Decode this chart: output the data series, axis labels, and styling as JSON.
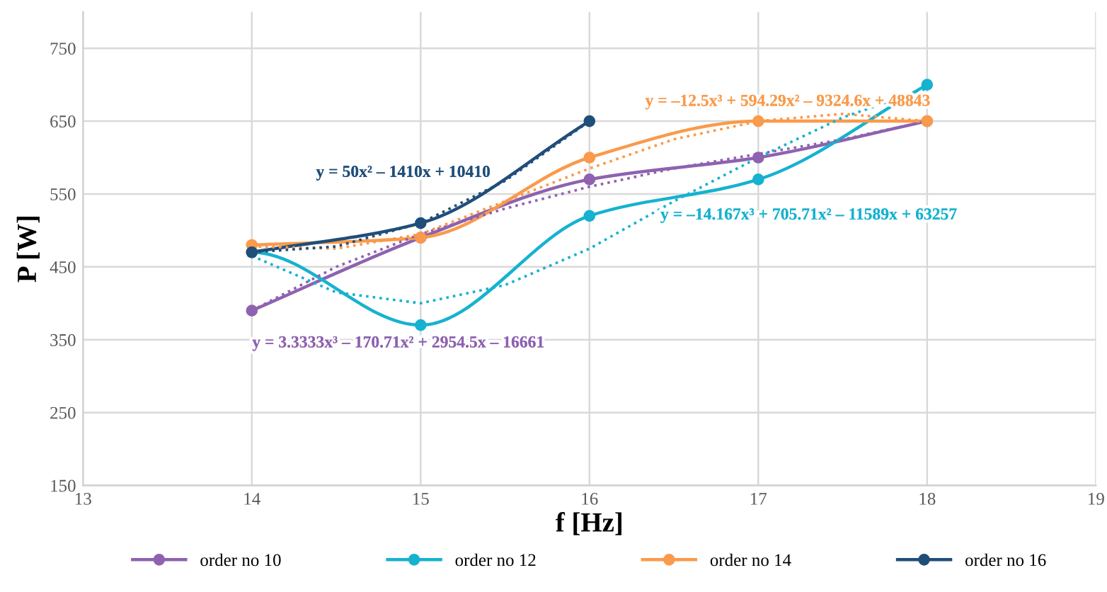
{
  "chart_data": {
    "type": "line",
    "xlabel": "f [Hz]",
    "ylabel": "P [W]",
    "xlim": [
      13,
      19
    ],
    "xticks": [
      13,
      14,
      15,
      16,
      17,
      18,
      19
    ],
    "ylim": [
      150,
      800
    ],
    "yticks": [
      150,
      250,
      350,
      450,
      550,
      650,
      750
    ],
    "grid": true,
    "legend": "bottom",
    "marker": "circle",
    "line_style": "solid",
    "series": [
      {
        "name": "order no 10",
        "color": "#8e62b0",
        "x": [
          14,
          15,
          16,
          17,
          18
        ],
        "values": [
          390,
          490,
          570,
          600,
          650
        ]
      },
      {
        "name": "order no 12",
        "color": "#16b2d0",
        "x": [
          14,
          15,
          16,
          17,
          18
        ],
        "values": [
          470,
          370,
          520,
          570,
          700
        ]
      },
      {
        "name": "order no 14",
        "color": "#fa9a4b",
        "x": [
          14,
          15,
          16,
          17,
          18
        ],
        "values": [
          480,
          490,
          600,
          650,
          650
        ]
      },
      {
        "name": "order no 16",
        "color": "#1f4e79",
        "x": [
          14,
          15,
          16
        ],
        "values": [
          470,
          510,
          650
        ]
      },
      {
        "color": "#8e62b0",
        "marker": "none",
        "line_style": "dotted",
        "x": [
          14,
          14.5,
          15,
          15.5,
          16,
          16.5,
          17,
          17.5,
          18
        ],
        "values": [
          390,
          450,
          495,
          530,
          560,
          585,
          605,
          625,
          650
        ]
      },
      {
        "color": "#16b2d0",
        "marker": "none",
        "line_style": "dotted",
        "x": [
          14,
          14.5,
          15,
          15.5,
          16,
          16.5,
          17,
          17.5,
          18
        ],
        "values": [
          465,
          415,
          400,
          425,
          475,
          540,
          600,
          655,
          695
        ]
      },
      {
        "color": "#fa9a4b",
        "marker": "none",
        "line_style": "dotted",
        "x": [
          14,
          14.5,
          15,
          15.5,
          16,
          16.5,
          17,
          17.5,
          18
        ],
        "values": [
          478,
          475,
          495,
          540,
          585,
          625,
          650,
          660,
          650
        ]
      },
      {
        "color": "#1f4e79",
        "marker": "none",
        "line_style": "dotted",
        "x": [
          14,
          14.5,
          15,
          15.5,
          16
        ],
        "values": [
          470,
          478,
          510,
          568,
          650
        ]
      }
    ],
    "annotations": [
      "y = 3.3333x³ – 170.71x² + 2954.5x – 16661",
      "y = –14.167x³ + 705.71x² – 11589x + 63257",
      "y = –12.5x³ + 594.29x² – 9324.6x + 48843",
      "y = 50x² – 1410x + 10410"
    ]
  }
}
